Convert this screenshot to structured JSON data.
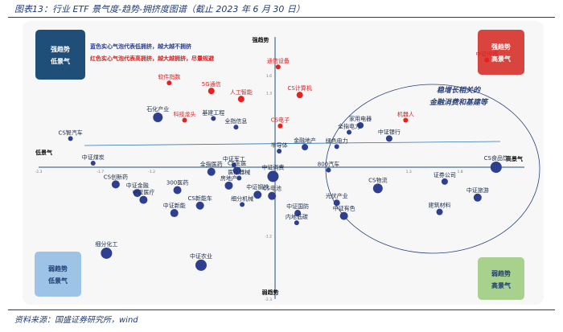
{
  "figure": {
    "title": "图表13：行业 ETF 景气度-趋势-拥挤度图谱（截止 2023 年 6 月 30 日）",
    "source": "资料来源：国盛证券研究所，wind"
  },
  "quadrants": {
    "top_left": {
      "line1": "强趋势",
      "line2": "低景气",
      "color": "#1f4e79"
    },
    "top_right": {
      "line1": "强趋势",
      "line2": "高景气",
      "color": "#d9443f"
    },
    "bottom_left": {
      "line1": "弱趋势",
      "line2": "低景气",
      "color": "#9dc3e6"
    },
    "bottom_right": {
      "line1": "弱趋势",
      "line2": "高景气",
      "color": "#a9d18e"
    }
  },
  "legend": {
    "blue_note": "蓝色实心气泡代表低拥挤，越大越不拥挤",
    "red_note": "红色实心气泡代表高拥挤，越大越拥挤，尽量规避",
    "blue_color": "#2f3f8f",
    "red_color": "#e02020"
  },
  "annotation": {
    "line1": "稳增长相关的",
    "line2": "金融消费和基建等"
  },
  "chart_data": {
    "type": "scatter",
    "xlim": [
      -2.3,
      2.3
    ],
    "ylim": [
      -2.3,
      2.0
    ],
    "axis_labels": {
      "x_left": "低景气",
      "x_right": "高景气",
      "y_top": "强趋势",
      "y_bottom": "弱趋势"
    },
    "x_ticks": [
      {
        "v": -2.3,
        "t": "-2.3"
      },
      {
        "v": -1.7,
        "t": "-1.7"
      },
      {
        "v": -1.2,
        "t": "-1.2"
      },
      {
        "v": 1.3,
        "t": "1.3"
      },
      {
        "v": 1.8,
        "t": "1.8"
      }
    ],
    "y_ticks": [
      {
        "v": 1.6,
        "t": "1.6"
      },
      {
        "v": 1.3,
        "t": "1.3"
      },
      {
        "v": -1.2,
        "t": "-1.2"
      },
      {
        "v": -2.3,
        "t": "-2.3"
      }
    ],
    "points": [
      {
        "name": "中证传媒",
        "x": 2.06,
        "y": 1.87,
        "color": "red",
        "size": 3
      },
      {
        "name": "通信设备",
        "x": 0.03,
        "y": 1.75,
        "color": "red",
        "size": 3
      },
      {
        "name": "软件指数",
        "x": -1.03,
        "y": 1.47,
        "color": "red",
        "size": 3
      },
      {
        "name": "5G通信",
        "x": -0.62,
        "y": 1.33,
        "color": "red",
        "size": 4
      },
      {
        "name": "人工智能",
        "x": -0.33,
        "y": 1.19,
        "color": "red",
        "size": 4
      },
      {
        "name": "CS计算机",
        "x": 0.24,
        "y": 1.26,
        "color": "red",
        "size": 4
      },
      {
        "name": "科技龙头",
        "x": -0.88,
        "y": 0.82,
        "color": "red",
        "size": 3
      },
      {
        "name": "CS电子",
        "x": 0.05,
        "y": 0.72,
        "color": "red",
        "size": 3
      },
      {
        "name": "机器人",
        "x": 1.27,
        "y": 0.82,
        "color": "red",
        "size": 3
      },
      {
        "name": "石化产业",
        "x": -1.14,
        "y": 0.87,
        "color": "blue",
        "size": 6
      },
      {
        "name": "基建工程",
        "x": -0.6,
        "y": 0.85,
        "color": "blue",
        "size": 3
      },
      {
        "name": "全指信息",
        "x": -0.38,
        "y": 0.7,
        "color": "blue",
        "size": 3
      },
      {
        "name": "家用电器",
        "x": 0.83,
        "y": 0.73,
        "color": "blue",
        "size": 4
      },
      {
        "name": "全指电力",
        "x": 0.72,
        "y": 0.61,
        "color": "blue",
        "size": 3
      },
      {
        "name": "半导体",
        "x": 0.04,
        "y": 0.28,
        "color": "blue",
        "size": 3
      },
      {
        "name": "金融地产",
        "x": 0.29,
        "y": 0.35,
        "color": "blue",
        "size": 4
      },
      {
        "name": "绿色电力",
        "x": 0.6,
        "y": 0.36,
        "color": "blue",
        "size": 3
      },
      {
        "name": "中证银行",
        "x": 1.11,
        "y": 0.5,
        "color": "blue",
        "size": 4
      },
      {
        "name": "CS智汽车",
        "x": -1.99,
        "y": 0.5,
        "color": "blue",
        "size": 3
      },
      {
        "name": "中证煤炭",
        "x": -1.77,
        "y": 0.07,
        "color": "blue",
        "size": 3
      },
      {
        "name": "全指医药",
        "x": -0.62,
        "y": -0.08,
        "color": "blue",
        "size": 5
      },
      {
        "name": "中证军工",
        "x": -0.4,
        "y": 0.04,
        "color": "blue",
        "size": 3
      },
      {
        "name": "CS生医",
        "x": -0.37,
        "y": -0.06,
        "color": "blue",
        "size": 5
      },
      {
        "name": "医疗器械",
        "x": -0.35,
        "y": -0.19,
        "color": "blue",
        "size": 3
      },
      {
        "name": "房地产",
        "x": -0.45,
        "y": -0.32,
        "color": "blue",
        "size": 5
      },
      {
        "name": "800汽车",
        "x": 0.52,
        "y": -0.05,
        "color": "blue",
        "size": 3
      },
      {
        "name": "中证消费",
        "x": -0.02,
        "y": -0.16,
        "color": "blue",
        "size": 7
      },
      {
        "name": "CS物流",
        "x": 1.0,
        "y": -0.37,
        "color": "blue",
        "size": 6
      },
      {
        "name": "证券公司",
        "x": 1.65,
        "y": -0.25,
        "color": "blue",
        "size": 4
      },
      {
        "name": "CS食品饮",
        "x": 2.15,
        "y": 0.0,
        "color": "blue",
        "size": 7
      },
      {
        "name": "CS创新药",
        "x": -1.55,
        "y": -0.3,
        "color": "blue",
        "size": 5
      },
      {
        "name": "中证金融",
        "x": -1.34,
        "y": -0.45,
        "color": "blue",
        "size": 5
      },
      {
        "name": "中证医疗",
        "x": -1.28,
        "y": -0.57,
        "color": "blue",
        "size": 5
      },
      {
        "name": "300医药",
        "x": -0.95,
        "y": -0.4,
        "color": "blue",
        "size": 5
      },
      {
        "name": "中证钢铁",
        "x": -0.17,
        "y": -0.48,
        "color": "blue",
        "size": 5
      },
      {
        "name": "CS电池",
        "x": -0.03,
        "y": -0.5,
        "color": "blue",
        "size": 5
      },
      {
        "name": "细分机械",
        "x": -0.32,
        "y": -0.65,
        "color": "blue",
        "size": 3
      },
      {
        "name": "CS新能车",
        "x": -0.73,
        "y": -0.67,
        "color": "blue",
        "size": 5
      },
      {
        "name": "中证新能",
        "x": -0.98,
        "y": -0.8,
        "color": "blue",
        "size": 5
      },
      {
        "name": "光伏产业",
        "x": 0.6,
        "y": -0.62,
        "color": "blue",
        "size": 4
      },
      {
        "name": "中证有色",
        "x": 0.67,
        "y": -0.85,
        "color": "blue",
        "size": 5
      },
      {
        "name": "中证旅游",
        "x": 1.97,
        "y": -0.53,
        "color": "blue",
        "size": 5
      },
      {
        "name": "中证国防",
        "x": 0.22,
        "y": -0.8,
        "color": "blue",
        "size": 4
      },
      {
        "name": "内地低碳",
        "x": 0.21,
        "y": -0.97,
        "color": "blue",
        "size": 3
      },
      {
        "name": "建筑材料",
        "x": 1.6,
        "y": -0.78,
        "color": "blue",
        "size": 4
      },
      {
        "name": "中证农业",
        "x": -0.72,
        "y": -1.71,
        "color": "blue",
        "size": 7
      },
      {
        "name": "细分化工",
        "x": -1.64,
        "y": -1.5,
        "color": "blue",
        "size": 7
      }
    ]
  }
}
